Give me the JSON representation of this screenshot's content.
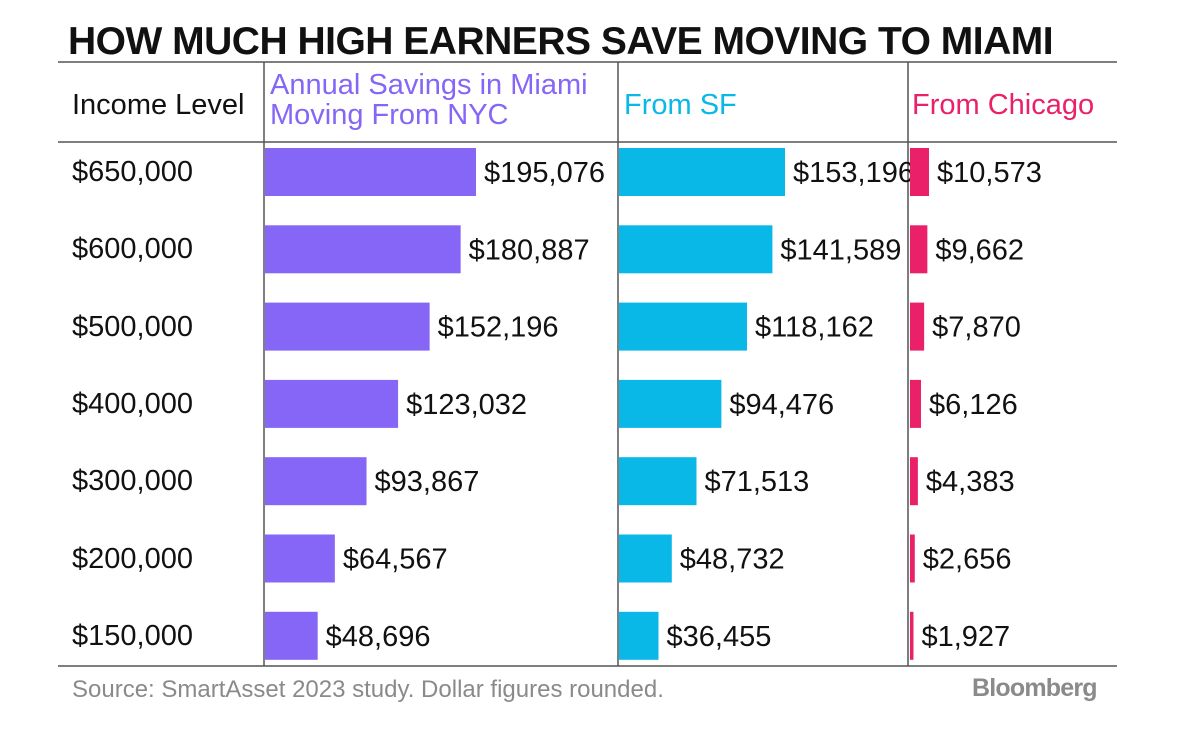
{
  "title": "HOW MUCH HIGH EARNERS SAVE MOVING TO MIAMI",
  "source": "Source: SmartAsset 2023 study. Dollar figures rounded.",
  "logo_text": "Bloomberg",
  "colors": {
    "nyc": "#8566f7",
    "sf": "#0ab8e8",
    "chicago": "#ea2068",
    "rule": "#555555"
  },
  "chart_data": {
    "type": "bar",
    "title": "HOW MUCH HIGH EARNERS SAVE MOVING TO MIAMI",
    "row_header": "Income Level",
    "categories": [
      "$650,000",
      "$600,000",
      "$500,000",
      "$400,000",
      "$300,000",
      "$200,000",
      "$150,000"
    ],
    "series": [
      {
        "name_lines": [
          "Annual Savings in Miami",
          "Moving From NYC"
        ],
        "values": [
          195076,
          180887,
          152196,
          123032,
          93867,
          64567,
          48696
        ],
        "labels": [
          "$195,076",
          "$180,887",
          "$152,196",
          "$123,032",
          "$93,867",
          "$64,567",
          "$48,696"
        ]
      },
      {
        "name_lines": [
          "From SF"
        ],
        "values": [
          153196,
          141589,
          118162,
          94476,
          71513,
          48732,
          36455
        ],
        "labels": [
          "$153,196",
          "$141,589",
          "$118,162",
          "$94,476",
          "$71,513",
          "$48,732",
          "$36,455"
        ]
      },
      {
        "name_lines": [
          "From Chicago"
        ],
        "values": [
          10573,
          9662,
          7870,
          6126,
          4383,
          2656,
          1927
        ],
        "labels": [
          "$10,573",
          "$9,662",
          "$7,870",
          "$6,126",
          "$4,383",
          "$2,656",
          "$1,927"
        ]
      }
    ],
    "legend": "none",
    "grid": false
  }
}
